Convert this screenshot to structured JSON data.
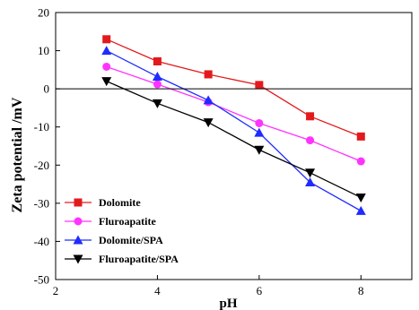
{
  "chart_data": {
    "type": "line",
    "title": "",
    "xlabel": "pH",
    "ylabel": "Zeta potential /mV",
    "xlim": [
      2,
      9
    ],
    "ylim": [
      -50,
      20
    ],
    "xticks": [
      2,
      4,
      6,
      8
    ],
    "yticks": [
      20,
      10,
      0,
      -10,
      -20,
      -30,
      -40,
      -50
    ],
    "x": [
      3,
      4,
      5,
      6,
      7,
      8
    ],
    "reference_line_y": 0,
    "grid": false,
    "legend_position": "bottom-left",
    "series": [
      {
        "name": "Dolomite",
        "color": "#e31a1c",
        "marker": "square",
        "values": [
          13.0,
          7.2,
          3.8,
          1.0,
          -7.2,
          -12.5
        ]
      },
      {
        "name": "Fluroapatite",
        "color": "#ff33ff",
        "marker": "circle",
        "values": [
          5.8,
          1.2,
          -3.5,
          -9.0,
          -13.5,
          -19.0
        ]
      },
      {
        "name": "Dolomite/SPA",
        "color": "#1f2bff",
        "marker": "triangle-up",
        "values": [
          10.0,
          3.2,
          -3.0,
          -11.5,
          -24.5,
          -32.0
        ]
      },
      {
        "name": "Fluroapatite/SPA",
        "color": "#000000",
        "marker": "triangle-down",
        "values": [
          2.0,
          -3.8,
          -8.8,
          -16.0,
          -22.0,
          -28.5
        ]
      }
    ]
  }
}
